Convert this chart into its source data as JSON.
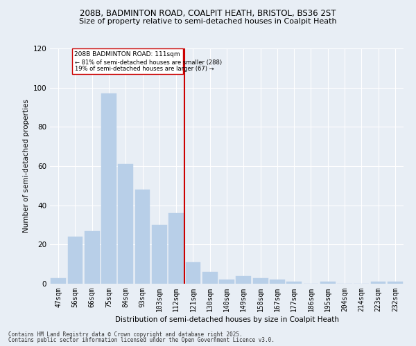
{
  "title_line1": "208B, BADMINTON ROAD, COALPIT HEATH, BRISTOL, BS36 2ST",
  "title_line2": "Size of property relative to semi-detached houses in Coalpit Heath",
  "xlabel": "Distribution of semi-detached houses by size in Coalpit Heath",
  "ylabel": "Number of semi-detached properties",
  "categories": [
    "47sqm",
    "56sqm",
    "66sqm",
    "75sqm",
    "84sqm",
    "93sqm",
    "103sqm",
    "112sqm",
    "121sqm",
    "130sqm",
    "140sqm",
    "149sqm",
    "158sqm",
    "167sqm",
    "177sqm",
    "186sqm",
    "195sqm",
    "204sqm",
    "214sqm",
    "223sqm",
    "232sqm"
  ],
  "values": [
    3,
    24,
    27,
    97,
    61,
    48,
    30,
    36,
    11,
    6,
    2,
    4,
    3,
    2,
    1,
    0,
    1,
    0,
    0,
    1,
    1
  ],
  "bar_color": "#b8cfe8",
  "bar_edge_color": "#b8cfe8",
  "ref_line_color": "#cc0000",
  "box_color": "#cc0000",
  "ylim": [
    0,
    120
  ],
  "yticks": [
    0,
    20,
    40,
    60,
    80,
    100,
    120
  ],
  "ref_line_label": "208B BADMINTON ROAD: 111sqm",
  "pct_smaller": "81% of semi-detached houses are smaller (288)",
  "pct_larger": "19% of semi-detached houses are larger (67)",
  "footnote1": "Contains HM Land Registry data © Crown copyright and database right 2025.",
  "footnote2": "Contains public sector information licensed under the Open Government Licence v3.0.",
  "bg_color": "#e8eef5",
  "grid_color": "#ffffff"
}
